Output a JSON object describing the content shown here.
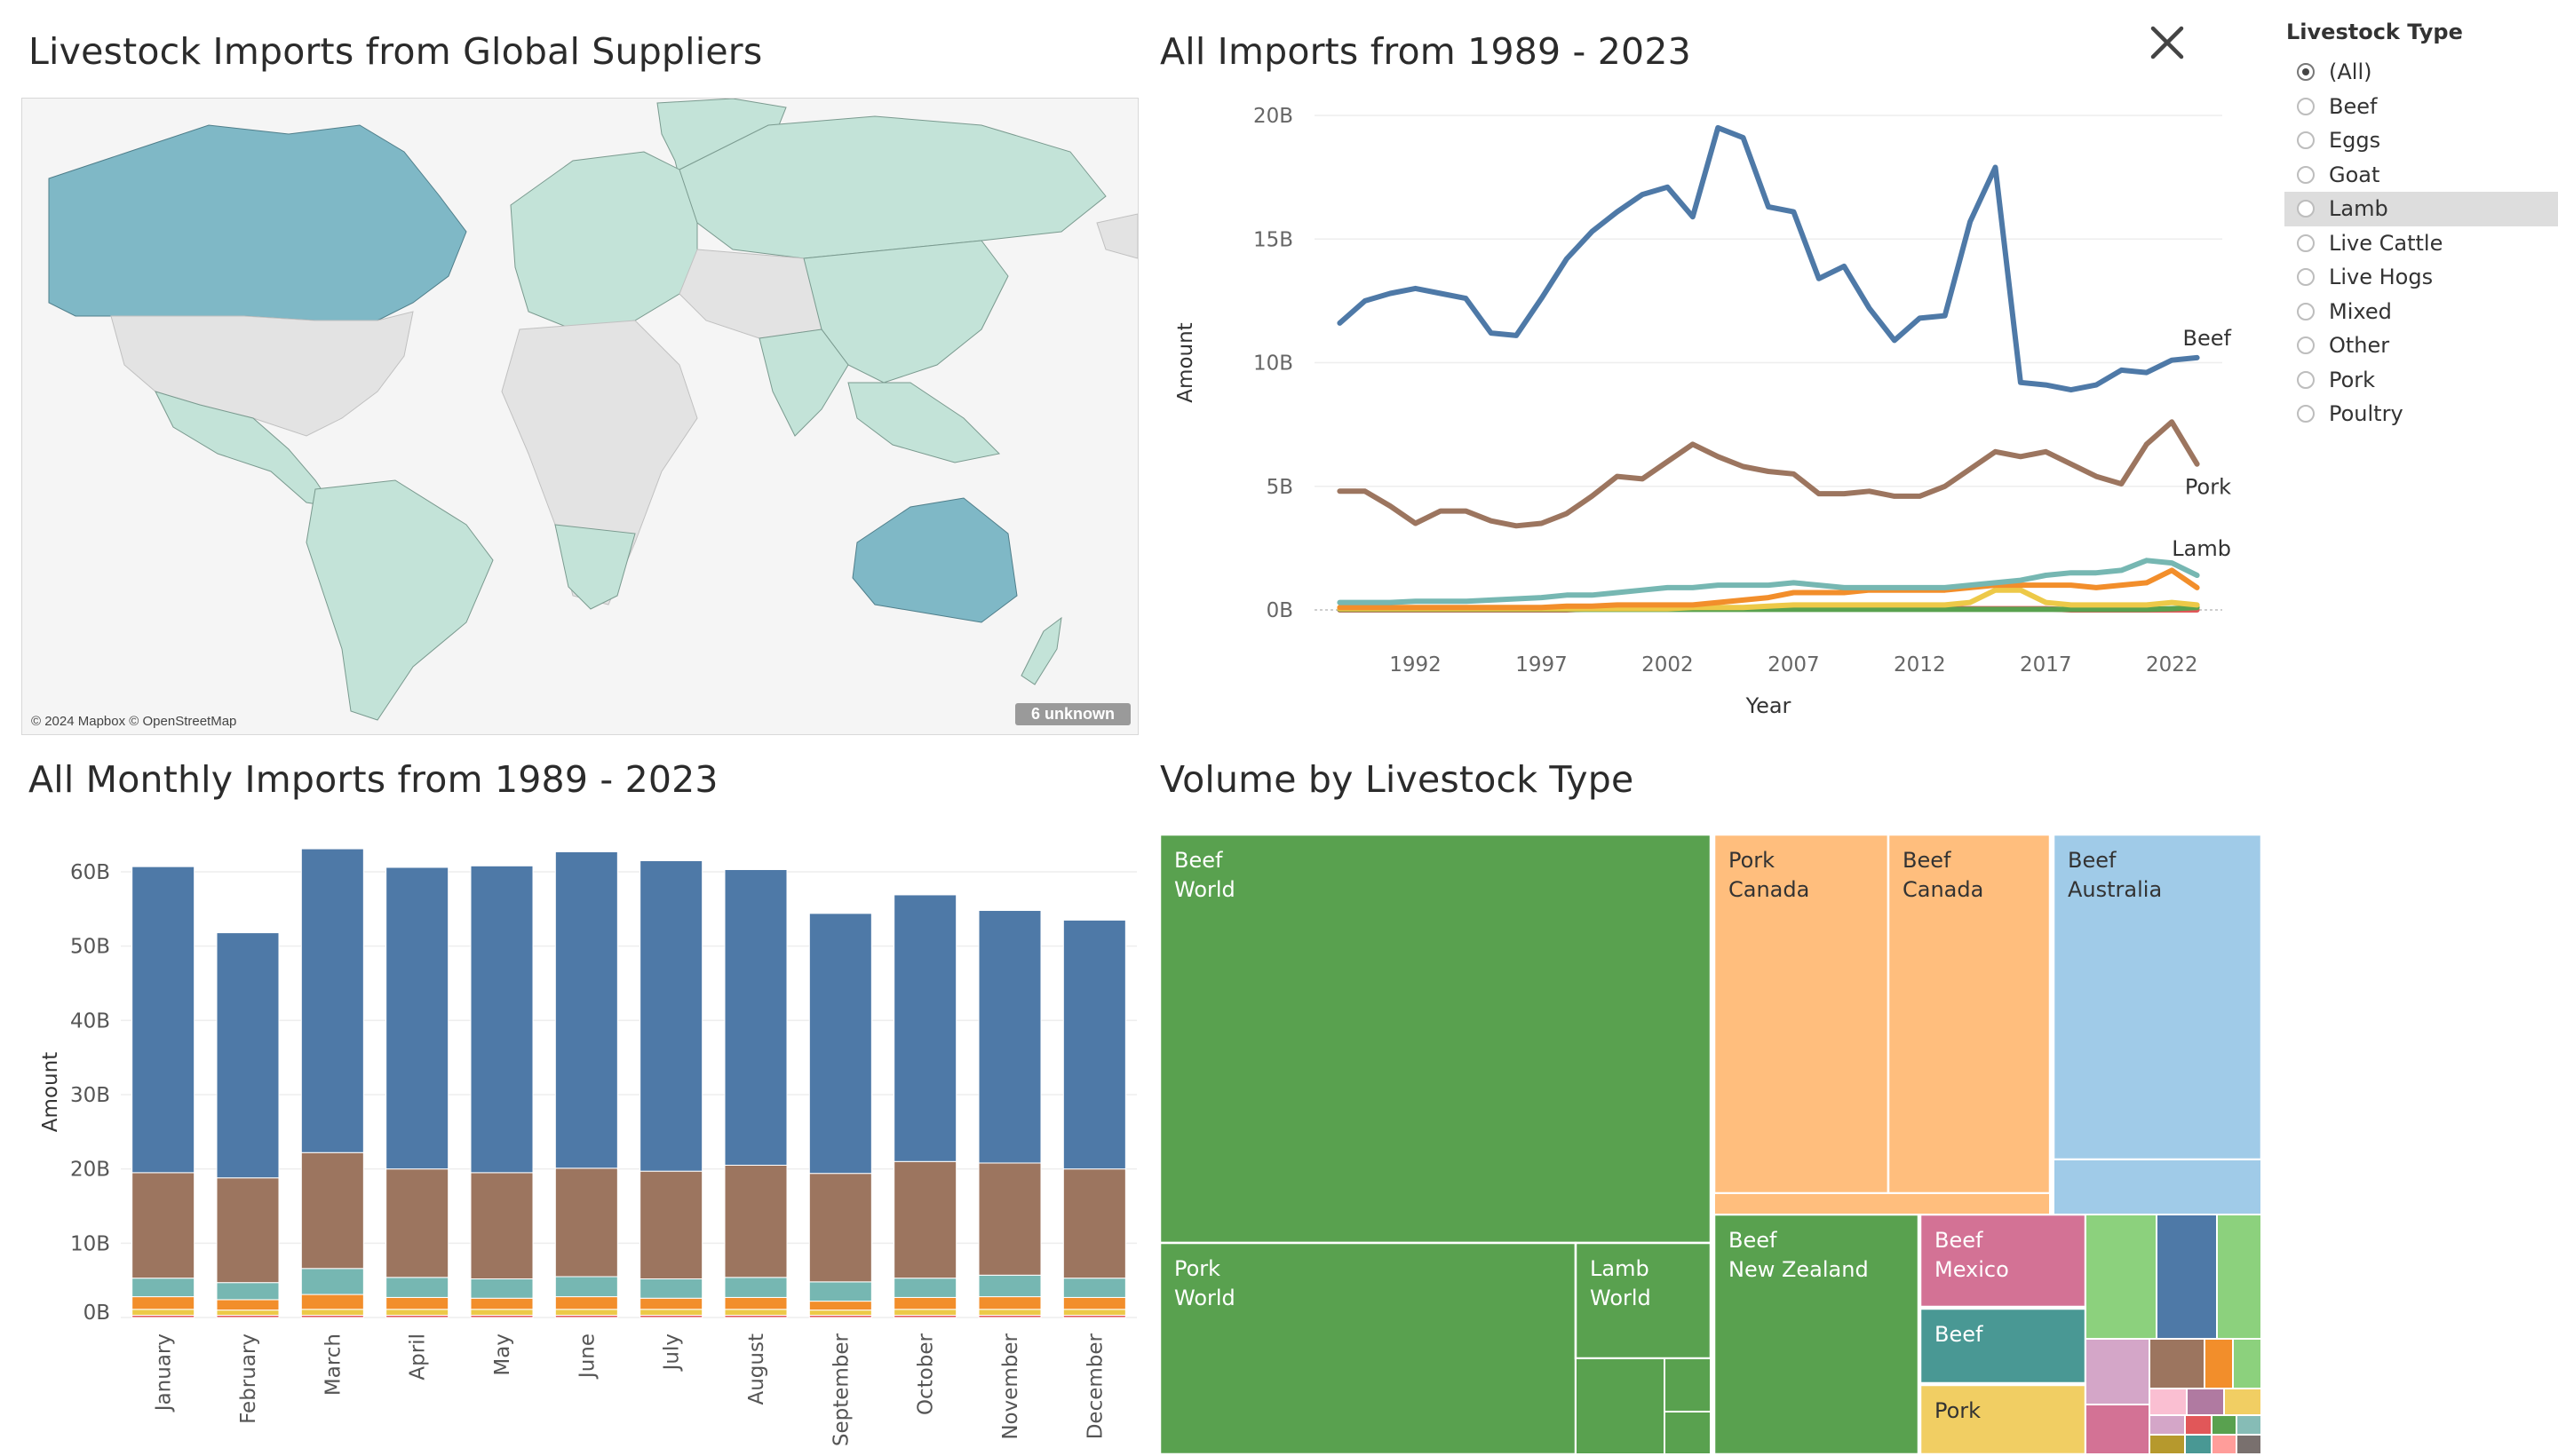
{
  "titles": {
    "map": "Livestock Imports from Global Suppliers",
    "line": "All Imports from 1989 - 2023",
    "bars": "All Monthly Imports from 1989 - 2023",
    "treemap": "Volume by Livestock Type"
  },
  "map": {
    "credit": "© 2024 Mapbox © OpenStreetMap",
    "unknown_badge": "6 unknown",
    "colors": {
      "high": "#7fb8c6",
      "mid": "#c3e3d8",
      "none": "#e3e3e3",
      "water": "#f5f5f5"
    }
  },
  "filter": {
    "title": "Livestock Type",
    "selected": "(All)",
    "hovered": "Lamb",
    "options": [
      "(All)",
      "Beef",
      "Eggs",
      "Goat",
      "Lamb",
      "Live Cattle",
      "Live Hogs",
      "Mixed",
      "Other",
      "Pork",
      "Poultry"
    ]
  },
  "icons": {
    "close": "close-icon",
    "radio": "radio-icon"
  },
  "chart_data": [
    {
      "type": "line",
      "title": "All Imports from 1989 - 2023",
      "xlabel": "Year",
      "ylabel": "Amount",
      "ylim": [
        0,
        20
      ],
      "xlim": [
        1989,
        2023
      ],
      "yticks": [
        {
          "v": 0,
          "label": "0B"
        },
        {
          "v": 5,
          "label": "5B"
        },
        {
          "v": 10,
          "label": "10B"
        },
        {
          "v": 15,
          "label": "15B"
        },
        {
          "v": 20,
          "label": "20B"
        }
      ],
      "xticks": [
        1992,
        1997,
        2002,
        2007,
        2012,
        2017,
        2022
      ],
      "x": [
        1989,
        1990,
        1991,
        1992,
        1993,
        1994,
        1995,
        1996,
        1997,
        1998,
        1999,
        2000,
        2001,
        2002,
        2003,
        2004,
        2005,
        2006,
        2007,
        2008,
        2009,
        2010,
        2011,
        2012,
        2013,
        2014,
        2015,
        2016,
        2017,
        2018,
        2019,
        2020,
        2021,
        2022,
        2023
      ],
      "series": [
        {
          "name": "Beef",
          "label": "Beef",
          "color": "#4e79a7",
          "values": [
            11.6,
            12.5,
            12.8,
            13.0,
            12.8,
            12.6,
            11.2,
            11.1,
            12.6,
            14.2,
            15.3,
            16.1,
            16.8,
            17.1,
            15.9,
            19.5,
            19.1,
            16.3,
            16.1,
            13.4,
            13.9,
            12.2,
            10.9,
            11.8,
            11.9,
            15.7,
            17.9,
            9.2,
            9.1,
            8.9,
            9.1,
            9.7,
            9.6,
            10.1,
            10.2
          ]
        },
        {
          "name": "Pork",
          "label": "Pork",
          "color": "#9c755f",
          "values": [
            4.8,
            4.8,
            4.2,
            3.5,
            4.0,
            4.0,
            3.6,
            3.4,
            3.5,
            3.9,
            4.6,
            5.4,
            5.3,
            6.0,
            6.7,
            6.2,
            5.8,
            5.6,
            5.5,
            4.7,
            4.7,
            4.8,
            4.6,
            4.6,
            5.0,
            5.7,
            6.4,
            6.2,
            6.4,
            5.9,
            5.4,
            5.1,
            6.7,
            7.6,
            5.9
          ]
        },
        {
          "name": "Lamb",
          "label": "Lamb",
          "color": "#76b7b2",
          "values": [
            0.3,
            0.3,
            0.3,
            0.35,
            0.35,
            0.35,
            0.4,
            0.45,
            0.5,
            0.6,
            0.6,
            0.7,
            0.8,
            0.9,
            0.9,
            1.0,
            1.0,
            1.0,
            1.1,
            1.0,
            0.9,
            0.9,
            0.9,
            0.9,
            0.9,
            1.0,
            1.1,
            1.2,
            1.4,
            1.5,
            1.5,
            1.6,
            2.0,
            1.9,
            1.4
          ]
        },
        {
          "name": "",
          "label": "",
          "color": "#f28e2b",
          "values": [
            0.1,
            0.1,
            0.1,
            0.1,
            0.1,
            0.1,
            0.1,
            0.1,
            0.1,
            0.15,
            0.15,
            0.2,
            0.2,
            0.2,
            0.2,
            0.3,
            0.4,
            0.5,
            0.7,
            0.7,
            0.7,
            0.8,
            0.8,
            0.8,
            0.8,
            0.9,
            1.0,
            1.0,
            1.0,
            1.0,
            0.9,
            1.0,
            1.1,
            1.6,
            0.9
          ]
        },
        {
          "name": "",
          "label": "",
          "color": "#edc948",
          "values": [
            0.05,
            0.05,
            0.05,
            0.05,
            0.05,
            0.05,
            0.05,
            0.05,
            0.05,
            0.05,
            0.05,
            0.05,
            0.05,
            0.05,
            0.1,
            0.1,
            0.1,
            0.15,
            0.2,
            0.2,
            0.2,
            0.2,
            0.2,
            0.2,
            0.2,
            0.3,
            0.8,
            0.8,
            0.3,
            0.2,
            0.2,
            0.2,
            0.2,
            0.3,
            0.2
          ]
        },
        {
          "name": "",
          "label": "",
          "color": "#59a14f",
          "values": [
            0.02,
            0.02,
            0.02,
            0.02,
            0.02,
            0.02,
            0.02,
            0.02,
            0.02,
            0.02,
            0.02,
            0.02,
            0.02,
            0.02,
            0.02,
            0.02,
            0.02,
            0.02,
            0.02,
            0.02,
            0.02,
            0.02,
            0.02,
            0.02,
            0.02,
            0.02,
            0.02,
            0.02,
            0.02,
            0.02,
            0.02,
            0.02,
            0.02,
            0.05,
            0.1
          ]
        },
        {
          "name": "",
          "label": "",
          "color": "#e15759",
          "values": [
            0.0,
            0.0,
            0.0,
            0.0,
            0.0,
            0.0,
            0.0,
            0.0,
            0.0,
            0.0,
            0.05,
            0.05,
            0.05,
            0.05,
            0.05,
            0.05,
            0.05,
            0.05,
            0.05,
            0.05,
            0.05,
            0.05,
            0.05,
            0.05,
            0.05,
            0.05,
            0.05,
            0.05,
            0.05,
            0.0,
            0.0,
            0.0,
            0.0,
            0.0,
            0.0
          ]
        }
      ]
    },
    {
      "type": "bar",
      "stacked": true,
      "title": "All Monthly Imports from 1989 - 2023",
      "ylabel": "Amount",
      "ylim": [
        0,
        65
      ],
      "yticks": [
        {
          "v": 0,
          "label": "0B"
        },
        {
          "v": 10,
          "label": "10B"
        },
        {
          "v": 20,
          "label": "20B"
        },
        {
          "v": 30,
          "label": "30B"
        },
        {
          "v": 40,
          "label": "40B"
        },
        {
          "v": 50,
          "label": "50B"
        },
        {
          "v": 60,
          "label": "60B"
        }
      ],
      "categories": [
        "January",
        "February",
        "March",
        "April",
        "May",
        "June",
        "July",
        "August",
        "September",
        "October",
        "November",
        "December"
      ],
      "series": [
        {
          "name": "",
          "color": "#e15759",
          "values": [
            0.3,
            0.3,
            0.3,
            0.3,
            0.3,
            0.3,
            0.3,
            0.3,
            0.3,
            0.3,
            0.3,
            0.3
          ]
        },
        {
          "name": "",
          "color": "#edc948",
          "values": [
            0.8,
            0.7,
            0.8,
            0.8,
            0.8,
            0.8,
            0.8,
            0.8,
            0.7,
            0.8,
            0.8,
            0.8
          ]
        },
        {
          "name": "",
          "color": "#f28e2b",
          "values": [
            1.7,
            1.4,
            2.0,
            1.6,
            1.5,
            1.7,
            1.5,
            1.6,
            1.2,
            1.6,
            1.7,
            1.6
          ]
        },
        {
          "name": "",
          "color": "#76b7b2",
          "values": [
            2.5,
            2.3,
            3.5,
            2.7,
            2.6,
            2.7,
            2.6,
            2.7,
            2.6,
            2.6,
            2.9,
            2.6
          ]
        },
        {
          "name": "",
          "color": "#9c755f",
          "values": [
            14.2,
            14.1,
            15.6,
            14.6,
            14.3,
            14.6,
            14.5,
            15.1,
            14.6,
            15.7,
            15.1,
            14.7
          ]
        },
        {
          "name": "",
          "color": "#4e79a7",
          "values": [
            41.2,
            33.0,
            40.9,
            40.6,
            41.3,
            42.6,
            41.8,
            39.8,
            35.0,
            35.9,
            34.0,
            33.5
          ]
        }
      ]
    },
    {
      "type": "treemap",
      "title": "Volume by Livestock Type",
      "items": [
        {
          "label1": "Beef",
          "label2": "World",
          "color": "#59a14f",
          "value": 26.5
        },
        {
          "label1": "Pork",
          "label2": "World",
          "color": "#59a14f",
          "value": 8.5
        },
        {
          "label1": "Lamb",
          "label2": "World",
          "color": "#59a14f",
          "value": 1.7
        },
        {
          "label1": "Pork",
          "label2": "Canada",
          "color": "#ffbe7d",
          "value": 6.7
        },
        {
          "label1": "Beef",
          "label2": "Canada",
          "color": "#ffbe7d",
          "value": 6.3
        },
        {
          "label1": "Beef",
          "label2": "Australia",
          "color": "#a0cbe8",
          "value": 5.4
        },
        {
          "label1": "Beef",
          "label2": "New Zealand",
          "color": "#59a14f",
          "value": 4.6
        },
        {
          "label1": "Beef",
          "label2": "Mexico",
          "color": "#d37295",
          "value": 1.0
        },
        {
          "label1": "Beef",
          "label2": "",
          "color": "#499894",
          "value": 0.85
        },
        {
          "label1": "Pork",
          "label2": "",
          "color": "#f1ce63",
          "value": 0.75
        }
      ]
    }
  ]
}
